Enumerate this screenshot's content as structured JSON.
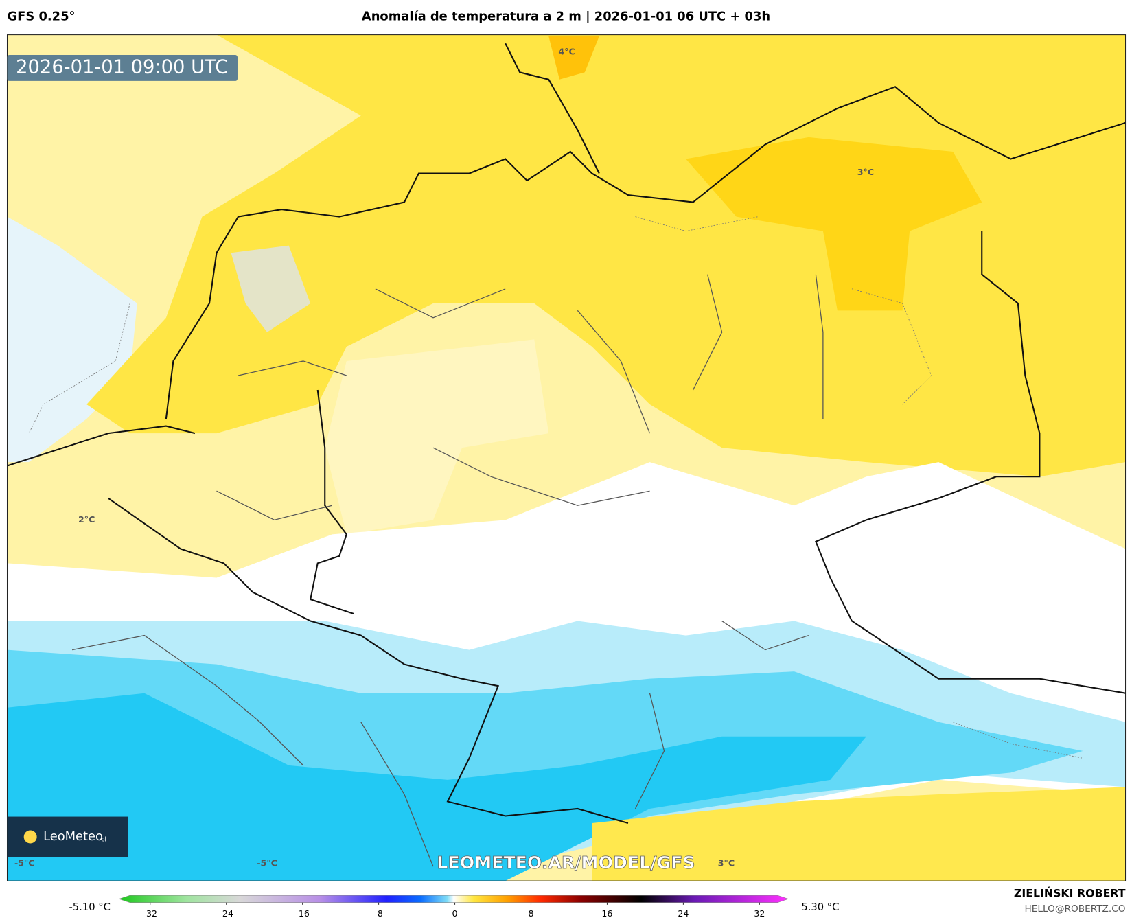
{
  "header": {
    "model": "GFS 0.25°",
    "title": "Anomalía de temperatura a 2 m | 2026-01-01 06 UTC + 03h"
  },
  "valid_time": "2026-01-01 09:00 UTC",
  "map_labels": [
    "4°C",
    "3°C",
    "2°C",
    "-5°C",
    "-5°C",
    "3°C"
  ],
  "watermark": "LEOMETEO.AR/MODEL/GFS",
  "logo": {
    "name": "LeoMeteo",
    "suffix": "pl"
  },
  "colorbar": {
    "min_label": "-5.10 °C",
    "max_label": "5.30 °C",
    "ticks": [
      -32,
      -24,
      -16,
      -8,
      0,
      8,
      16,
      24,
      32
    ]
  },
  "credit": {
    "author": "ZIELIŃSKI ROBERT",
    "email": "HELLO@ROBERTZ.CO"
  }
}
